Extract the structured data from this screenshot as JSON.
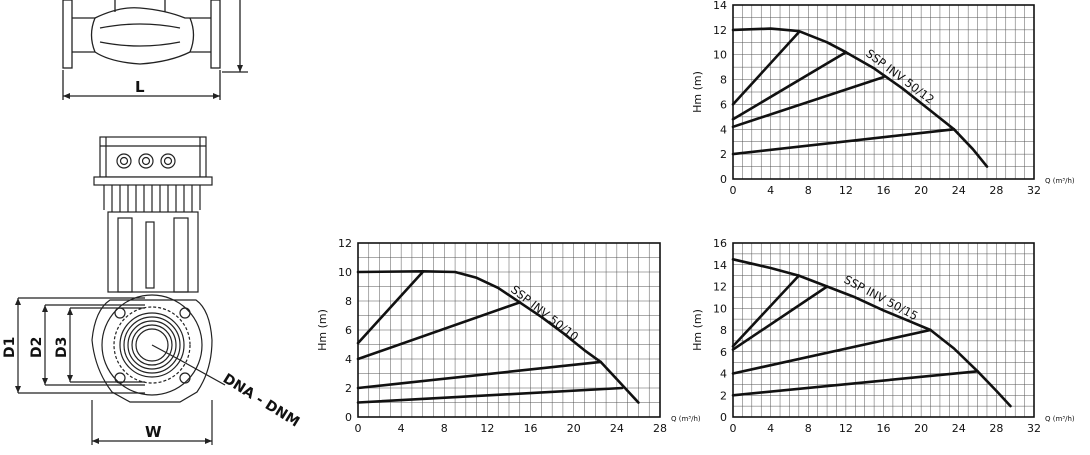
{
  "drawing": {
    "dim_L": "L",
    "dim_D1": "D1",
    "dim_D2": "D2",
    "dim_D3": "D3",
    "dim_W": "W",
    "dim_DNA": "DNA - DNM"
  },
  "chart_data": [
    {
      "type": "line",
      "curve_label": "SSP INV 50/12",
      "xlabel": "Q (m³/h)",
      "ylabel": "Hm (m)",
      "xlim": [
        0,
        32
      ],
      "ylim": [
        0,
        14
      ],
      "xticks": [
        0,
        4,
        8,
        12,
        16,
        20,
        24,
        28,
        32
      ],
      "yticks": [
        0,
        2,
        4,
        6,
        8,
        10,
        12,
        14
      ],
      "grid": true,
      "series": [
        {
          "x": [
            0,
            4,
            7,
            10,
            12,
            15,
            18,
            21,
            23.5,
            25.5,
            27
          ],
          "y": [
            12,
            12.1,
            11.9,
            11.0,
            10.2,
            8.9,
            7.3,
            5.5,
            4.0,
            2.4,
            1.0
          ]
        },
        {
          "x": [
            0,
            7
          ],
          "y": [
            6,
            11.8
          ]
        },
        {
          "x": [
            0,
            12
          ],
          "y": [
            4.8,
            10.2
          ]
        },
        {
          "x": [
            0,
            16
          ],
          "y": [
            4.2,
            8.2
          ]
        },
        {
          "x": [
            0,
            23.5
          ],
          "y": [
            2.0,
            4.0
          ]
        }
      ]
    },
    {
      "type": "line",
      "curve_label": "SSP INV 50/10",
      "xlabel": "Q (m³/h)",
      "ylabel": "Hm (m)",
      "xlim": [
        0,
        28
      ],
      "ylim": [
        0,
        12
      ],
      "xticks": [
        0,
        4,
        8,
        12,
        16,
        20,
        24,
        28
      ],
      "yticks": [
        0,
        2,
        4,
        6,
        8,
        10,
        12
      ],
      "grid": true,
      "series": [
        {
          "x": [
            0,
            6,
            9,
            11,
            13,
            15,
            17,
            19,
            21,
            22.5,
            24.5,
            26
          ],
          "y": [
            10,
            10.05,
            10.0,
            9.6,
            8.9,
            7.9,
            6.9,
            5.8,
            4.6,
            3.8,
            2.2,
            1.0
          ]
        },
        {
          "x": [
            0,
            6
          ],
          "y": [
            5.1,
            10.0
          ]
        },
        {
          "x": [
            0,
            15
          ],
          "y": [
            4.0,
            7.9
          ]
        },
        {
          "x": [
            0,
            22.5
          ],
          "y": [
            2.0,
            3.8
          ]
        },
        {
          "x": [
            0,
            24.5
          ],
          "y": [
            1.0,
            2.0
          ]
        }
      ]
    },
    {
      "type": "line",
      "curve_label": "SSP INV 50/15",
      "xlabel": "Q (m³/h)",
      "ylabel": "Hm (m)",
      "xlim": [
        0,
        32
      ],
      "ylim": [
        0,
        16
      ],
      "xticks": [
        0,
        4,
        8,
        12,
        16,
        20,
        24,
        28,
        32
      ],
      "yticks": [
        0,
        2,
        4,
        6,
        8,
        10,
        12,
        14,
        16
      ],
      "grid": true,
      "series": [
        {
          "x": [
            0,
            4,
            7,
            10,
            13,
            16,
            18.5,
            21,
            23.5,
            26,
            28,
            29.5
          ],
          "y": [
            14.5,
            13.7,
            13.0,
            12.0,
            11.0,
            9.8,
            8.9,
            8.0,
            6.3,
            4.2,
            2.4,
            1.0
          ]
        },
        {
          "x": [
            0,
            7
          ],
          "y": [
            6.5,
            13.0
          ]
        },
        {
          "x": [
            0,
            10
          ],
          "y": [
            6.2,
            12.0
          ]
        },
        {
          "x": [
            0,
            21
          ],
          "y": [
            4.0,
            8.0
          ]
        },
        {
          "x": [
            0,
            26
          ],
          "y": [
            2.0,
            4.2
          ]
        }
      ]
    }
  ]
}
